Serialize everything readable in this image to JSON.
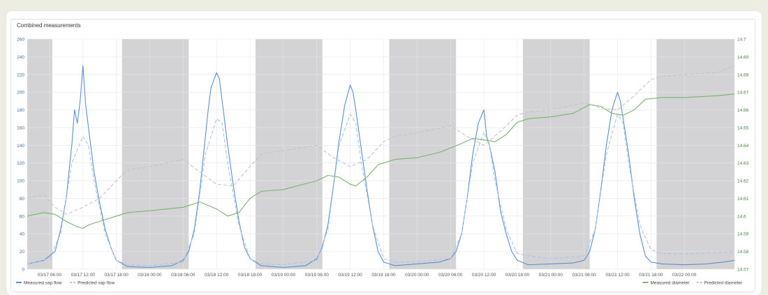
{
  "panel": {
    "title": "Combined measurements"
  },
  "colors": {
    "measured_sap": "#5b8fd0",
    "predicted_sap": "#a9c5ea",
    "measured_diam": "#79b46f",
    "predicted_diam": "#c4c4c4",
    "night_band": "#d3d3d5",
    "grid": "#e6e6e6",
    "left_axis": "#3a6fb0",
    "right_axis": "#3f8a3f"
  },
  "chart_data": {
    "type": "line",
    "x_range": [
      "2025-03-17T02:00",
      "2025-03-22T09:00"
    ],
    "x_ticks": [
      "03/17 06:00",
      "03/17 12:00",
      "03/17 18:00",
      "03/18 00:00",
      "03/18 06:00",
      "03/18 12:00",
      "03/18 18:00",
      "03/19 00:00",
      "03/19 06:00",
      "03/19 12:00",
      "03/19 18:00",
      "03/20 00:00",
      "03/20 06:00",
      "03/20 12:00",
      "03/20 18:00",
      "03/21 00:00",
      "03/21 06:00",
      "03/21 12:00",
      "03/21 18:00",
      "03/22 00:00"
    ],
    "y_left": {
      "range": [
        0,
        260
      ],
      "ticks": [
        "0",
        "20",
        "40",
        "60",
        "80",
        "100",
        "120",
        "140",
        "160",
        "180",
        "200",
        "220",
        "240",
        "260"
      ]
    },
    "y_right": {
      "range": [
        14.57,
        14.7
      ],
      "ticks": [
        "14.57",
        "14.58",
        "14.59",
        "14.6",
        "14.61",
        "14.62",
        "14.63",
        "14.64",
        "14.65",
        "14.66",
        "14.67",
        "14.68",
        "14.69",
        "14.7"
      ]
    },
    "night_bands": [
      [
        "2025-03-17T02:00",
        "2025-03-17T06:30"
      ],
      [
        "2025-03-17T19:00",
        "2025-03-18T07:00"
      ],
      [
        "2025-03-18T19:00",
        "2025-03-19T07:00"
      ],
      [
        "2025-03-19T19:00",
        "2025-03-20T07:00"
      ],
      [
        "2025-03-20T19:00",
        "2025-03-21T07:00"
      ],
      [
        "2025-03-21T19:00",
        "2025-03-22T09:00"
      ]
    ],
    "series": [
      {
        "name": "Measured sap flow",
        "axis": "left",
        "style": "solid",
        "points": [
          [
            "2025-03-17T02:00",
            6
          ],
          [
            "2025-03-17T05:00",
            10
          ],
          [
            "2025-03-17T07:00",
            20
          ],
          [
            "2025-03-17T08:00",
            45
          ],
          [
            "2025-03-17T09:00",
            80
          ],
          [
            "2025-03-17T10:00",
            140
          ],
          [
            "2025-03-17T10:30",
            180
          ],
          [
            "2025-03-17T11:00",
            165
          ],
          [
            "2025-03-17T11:30",
            190
          ],
          [
            "2025-03-17T12:00",
            230
          ],
          [
            "2025-03-17T12:30",
            185
          ],
          [
            "2025-03-17T13:00",
            160
          ],
          [
            "2025-03-17T14:00",
            110
          ],
          [
            "2025-03-17T15:00",
            75
          ],
          [
            "2025-03-17T16:00",
            45
          ],
          [
            "2025-03-17T17:00",
            25
          ],
          [
            "2025-03-17T18:00",
            10
          ],
          [
            "2025-03-17T20:00",
            3
          ],
          [
            "2025-03-18T00:00",
            2
          ],
          [
            "2025-03-18T04:00",
            4
          ],
          [
            "2025-03-18T06:00",
            10
          ],
          [
            "2025-03-18T07:00",
            20
          ],
          [
            "2025-03-18T08:00",
            45
          ],
          [
            "2025-03-18T09:00",
            90
          ],
          [
            "2025-03-18T10:00",
            150
          ],
          [
            "2025-03-18T10:30",
            180
          ],
          [
            "2025-03-18T11:00",
            205
          ],
          [
            "2025-03-18T12:00",
            222
          ],
          [
            "2025-03-18T12:30",
            215
          ],
          [
            "2025-03-18T13:00",
            190
          ],
          [
            "2025-03-18T14:00",
            140
          ],
          [
            "2025-03-18T15:00",
            95
          ],
          [
            "2025-03-18T16:00",
            55
          ],
          [
            "2025-03-18T17:00",
            25
          ],
          [
            "2025-03-18T18:00",
            12
          ],
          [
            "2025-03-18T20:00",
            4
          ],
          [
            "2025-03-19T00:00",
            2
          ],
          [
            "2025-03-19T04:00",
            4
          ],
          [
            "2025-03-19T06:00",
            12
          ],
          [
            "2025-03-19T07:00",
            25
          ],
          [
            "2025-03-19T08:00",
            50
          ],
          [
            "2025-03-19T09:00",
            95
          ],
          [
            "2025-03-19T10:00",
            145
          ],
          [
            "2025-03-19T11:00",
            185
          ],
          [
            "2025-03-19T12:00",
            208
          ],
          [
            "2025-03-19T12:30",
            200
          ],
          [
            "2025-03-19T13:00",
            180
          ],
          [
            "2025-03-19T14:00",
            135
          ],
          [
            "2025-03-19T15:00",
            90
          ],
          [
            "2025-03-19T16:00",
            50
          ],
          [
            "2025-03-19T17:00",
            20
          ],
          [
            "2025-03-19T18:00",
            8
          ],
          [
            "2025-03-19T20:00",
            4
          ],
          [
            "2025-03-20T00:00",
            6
          ],
          [
            "2025-03-20T04:00",
            8
          ],
          [
            "2025-03-20T06:00",
            12
          ],
          [
            "2025-03-20T07:00",
            20
          ],
          [
            "2025-03-20T08:00",
            40
          ],
          [
            "2025-03-20T09:00",
            80
          ],
          [
            "2025-03-20T10:00",
            130
          ],
          [
            "2025-03-20T11:00",
            165
          ],
          [
            "2025-03-20T12:00",
            180
          ],
          [
            "2025-03-20T12:30",
            150
          ],
          [
            "2025-03-20T13:00",
            140
          ],
          [
            "2025-03-20T14:00",
            110
          ],
          [
            "2025-03-20T15:00",
            65
          ],
          [
            "2025-03-20T16:00",
            40
          ],
          [
            "2025-03-20T17:00",
            20
          ],
          [
            "2025-03-20T18:00",
            10
          ],
          [
            "2025-03-20T20:00",
            5
          ],
          [
            "2025-03-21T00:00",
            6
          ],
          [
            "2025-03-21T04:00",
            7
          ],
          [
            "2025-03-21T06:00",
            10
          ],
          [
            "2025-03-21T07:00",
            20
          ],
          [
            "2025-03-21T08:00",
            45
          ],
          [
            "2025-03-21T09:00",
            90
          ],
          [
            "2025-03-21T10:00",
            140
          ],
          [
            "2025-03-21T11:00",
            180
          ],
          [
            "2025-03-21T12:00",
            200
          ],
          [
            "2025-03-21T12:30",
            190
          ],
          [
            "2025-03-21T13:00",
            170
          ],
          [
            "2025-03-21T14:00",
            130
          ],
          [
            "2025-03-21T15:00",
            80
          ],
          [
            "2025-03-21T16:00",
            40
          ],
          [
            "2025-03-21T17:00",
            15
          ],
          [
            "2025-03-21T18:00",
            8
          ],
          [
            "2025-03-21T20:00",
            6
          ],
          [
            "2025-03-22T00:00",
            5
          ],
          [
            "2025-03-22T04:00",
            6
          ],
          [
            "2025-03-22T07:00",
            8
          ],
          [
            "2025-03-22T09:00",
            10
          ]
        ]
      },
      {
        "name": "Predicted sap flow",
        "axis": "left",
        "style": "dashed",
        "points": [
          [
            "2025-03-17T02:00",
            6
          ],
          [
            "2025-03-17T06:00",
            12
          ],
          [
            "2025-03-17T08:00",
            40
          ],
          [
            "2025-03-17T10:00",
            120
          ],
          [
            "2025-03-17T12:00",
            150
          ],
          [
            "2025-03-17T13:00",
            140
          ],
          [
            "2025-03-17T14:00",
            100
          ],
          [
            "2025-03-17T16:00",
            40
          ],
          [
            "2025-03-17T18:00",
            10
          ],
          [
            "2025-03-17T20:00",
            5
          ],
          [
            "2025-03-18T00:00",
            4
          ],
          [
            "2025-03-18T06:00",
            8
          ],
          [
            "2025-03-18T08:00",
            40
          ],
          [
            "2025-03-18T10:00",
            130
          ],
          [
            "2025-03-18T12:00",
            170
          ],
          [
            "2025-03-18T13:00",
            165
          ],
          [
            "2025-03-18T14:00",
            120
          ],
          [
            "2025-03-18T16:00",
            50
          ],
          [
            "2025-03-18T18:00",
            12
          ],
          [
            "2025-03-18T20:00",
            6
          ],
          [
            "2025-03-19T00:00",
            5
          ],
          [
            "2025-03-19T06:00",
            10
          ],
          [
            "2025-03-19T08:00",
            45
          ],
          [
            "2025-03-19T10:00",
            140
          ],
          [
            "2025-03-19T12:00",
            175
          ],
          [
            "2025-03-19T13:00",
            165
          ],
          [
            "2025-03-19T14:00",
            120
          ],
          [
            "2025-03-19T16:00",
            50
          ],
          [
            "2025-03-19T18:00",
            12
          ],
          [
            "2025-03-19T20:00",
            8
          ],
          [
            "2025-03-20T00:00",
            8
          ],
          [
            "2025-03-20T06:00",
            12
          ],
          [
            "2025-03-20T08:00",
            40
          ],
          [
            "2025-03-20T10:00",
            120
          ],
          [
            "2025-03-20T12:00",
            155
          ],
          [
            "2025-03-20T13:00",
            140
          ],
          [
            "2025-03-20T14:00",
            100
          ],
          [
            "2025-03-20T16:00",
            45
          ],
          [
            "2025-03-20T18:00",
            18
          ],
          [
            "2025-03-20T20:00",
            15
          ],
          [
            "2025-03-21T00:00",
            12
          ],
          [
            "2025-03-21T06:00",
            15
          ],
          [
            "2025-03-21T08:00",
            45
          ],
          [
            "2025-03-21T10:00",
            130
          ],
          [
            "2025-03-21T12:00",
            175
          ],
          [
            "2025-03-21T13:00",
            165
          ],
          [
            "2025-03-21T14:00",
            120
          ],
          [
            "2025-03-21T16:00",
            50
          ],
          [
            "2025-03-21T18:00",
            22
          ],
          [
            "2025-03-21T20:00",
            18
          ],
          [
            "2025-03-22T00:00",
            17
          ],
          [
            "2025-03-22T09:00",
            20
          ]
        ]
      },
      {
        "name": "Measured diameter",
        "axis": "right",
        "style": "solid",
        "points": [
          [
            "2025-03-17T02:00",
            14.6
          ],
          [
            "2025-03-17T05:00",
            14.602
          ],
          [
            "2025-03-17T07:00",
            14.601
          ],
          [
            "2025-03-17T09:00",
            14.597
          ],
          [
            "2025-03-17T11:00",
            14.594
          ],
          [
            "2025-03-17T12:00",
            14.593
          ],
          [
            "2025-03-17T13:00",
            14.595
          ],
          [
            "2025-03-17T15:00",
            14.597
          ],
          [
            "2025-03-17T18:00",
            14.6
          ],
          [
            "2025-03-17T20:00",
            14.602
          ],
          [
            "2025-03-18T00:00",
            14.603
          ],
          [
            "2025-03-18T06:00",
            14.605
          ],
          [
            "2025-03-18T09:00",
            14.608
          ],
          [
            "2025-03-18T12:00",
            14.604
          ],
          [
            "2025-03-18T14:00",
            14.6
          ],
          [
            "2025-03-18T16:00",
            14.602
          ],
          [
            "2025-03-18T18:00",
            14.61
          ],
          [
            "2025-03-18T20:00",
            14.614
          ],
          [
            "2025-03-19T00:00",
            14.615
          ],
          [
            "2025-03-19T06:00",
            14.62
          ],
          [
            "2025-03-19T08:00",
            14.623
          ],
          [
            "2025-03-19T10:00",
            14.622
          ],
          [
            "2025-03-19T12:00",
            14.618
          ],
          [
            "2025-03-19T13:00",
            14.617
          ],
          [
            "2025-03-19T15:00",
            14.622
          ],
          [
            "2025-03-19T17:00",
            14.629
          ],
          [
            "2025-03-19T20:00",
            14.632
          ],
          [
            "2025-03-20T00:00",
            14.633
          ],
          [
            "2025-03-20T04:00",
            14.636
          ],
          [
            "2025-03-20T08:00",
            14.641
          ],
          [
            "2025-03-20T10:00",
            14.644
          ],
          [
            "2025-03-20T12:00",
            14.643
          ],
          [
            "2025-03-20T14:00",
            14.642
          ],
          [
            "2025-03-20T16:00",
            14.646
          ],
          [
            "2025-03-20T18:00",
            14.653
          ],
          [
            "2025-03-20T20:00",
            14.655
          ],
          [
            "2025-03-21T00:00",
            14.656
          ],
          [
            "2025-03-21T04:00",
            14.658
          ],
          [
            "2025-03-21T07:00",
            14.663
          ],
          [
            "2025-03-21T09:00",
            14.662
          ],
          [
            "2025-03-21T11:00",
            14.658
          ],
          [
            "2025-03-21T13:00",
            14.657
          ],
          [
            "2025-03-21T15:00",
            14.66
          ],
          [
            "2025-03-21T17:00",
            14.666
          ],
          [
            "2025-03-21T20:00",
            14.667
          ],
          [
            "2025-03-22T00:00",
            14.667
          ],
          [
            "2025-03-22T06:00",
            14.668
          ],
          [
            "2025-03-22T09:00",
            14.669
          ]
        ]
      },
      {
        "name": "Predicted diameter",
        "axis": "right",
        "style": "dashed",
        "points": [
          [
            "2025-03-17T02:00",
            14.61
          ],
          [
            "2025-03-17T05:00",
            14.612
          ],
          [
            "2025-03-17T07:00",
            14.605
          ],
          [
            "2025-03-17T09:00",
            14.601
          ],
          [
            "2025-03-17T12:00",
            14.605
          ],
          [
            "2025-03-17T15:00",
            14.61
          ],
          [
            "2025-03-17T18:00",
            14.62
          ],
          [
            "2025-03-17T20:00",
            14.626
          ],
          [
            "2025-03-18T00:00",
            14.628
          ],
          [
            "2025-03-18T06:00",
            14.632
          ],
          [
            "2025-03-18T09:00",
            14.625
          ],
          [
            "2025-03-18T12:00",
            14.618
          ],
          [
            "2025-03-18T15:00",
            14.617
          ],
          [
            "2025-03-18T18:00",
            14.628
          ],
          [
            "2025-03-18T20:00",
            14.635
          ],
          [
            "2025-03-19T00:00",
            14.637
          ],
          [
            "2025-03-19T06:00",
            14.64
          ],
          [
            "2025-03-19T09:00",
            14.633
          ],
          [
            "2025-03-19T12:00",
            14.628
          ],
          [
            "2025-03-19T15:00",
            14.632
          ],
          [
            "2025-03-19T18:00",
            14.642
          ],
          [
            "2025-03-19T20:00",
            14.645
          ],
          [
            "2025-03-20T00:00",
            14.647
          ],
          [
            "2025-03-20T06:00",
            14.651
          ],
          [
            "2025-03-20T09:00",
            14.645
          ],
          [
            "2025-03-20T12:00",
            14.64
          ],
          [
            "2025-03-20T15:00",
            14.648
          ],
          [
            "2025-03-20T18:00",
            14.657
          ],
          [
            "2025-03-20T20:00",
            14.659
          ],
          [
            "2025-03-21T00:00",
            14.66
          ],
          [
            "2025-03-21T06:00",
            14.664
          ],
          [
            "2025-03-21T09:00",
            14.661
          ],
          [
            "2025-03-21T12:00",
            14.66
          ],
          [
            "2025-03-21T15:00",
            14.668
          ],
          [
            "2025-03-21T18:00",
            14.677
          ],
          [
            "2025-03-21T20:00",
            14.679
          ],
          [
            "2025-03-22T00:00",
            14.68
          ],
          [
            "2025-03-22T06:00",
            14.681
          ],
          [
            "2025-03-22T09:00",
            14.685
          ]
        ]
      }
    ],
    "legend": {
      "left": [
        {
          "label": "Measured sap flow",
          "color": "#5b8fd0",
          "style": "solid"
        },
        {
          "label": "Predicted sap flow",
          "color": "#a9c5ea",
          "style": "dashed"
        }
      ],
      "right": [
        {
          "label": "Measured diameter",
          "color": "#79b46f",
          "style": "solid"
        },
        {
          "label": "Predicted diameter",
          "color": "#c4c4c4",
          "style": "dashed"
        }
      ]
    }
  }
}
